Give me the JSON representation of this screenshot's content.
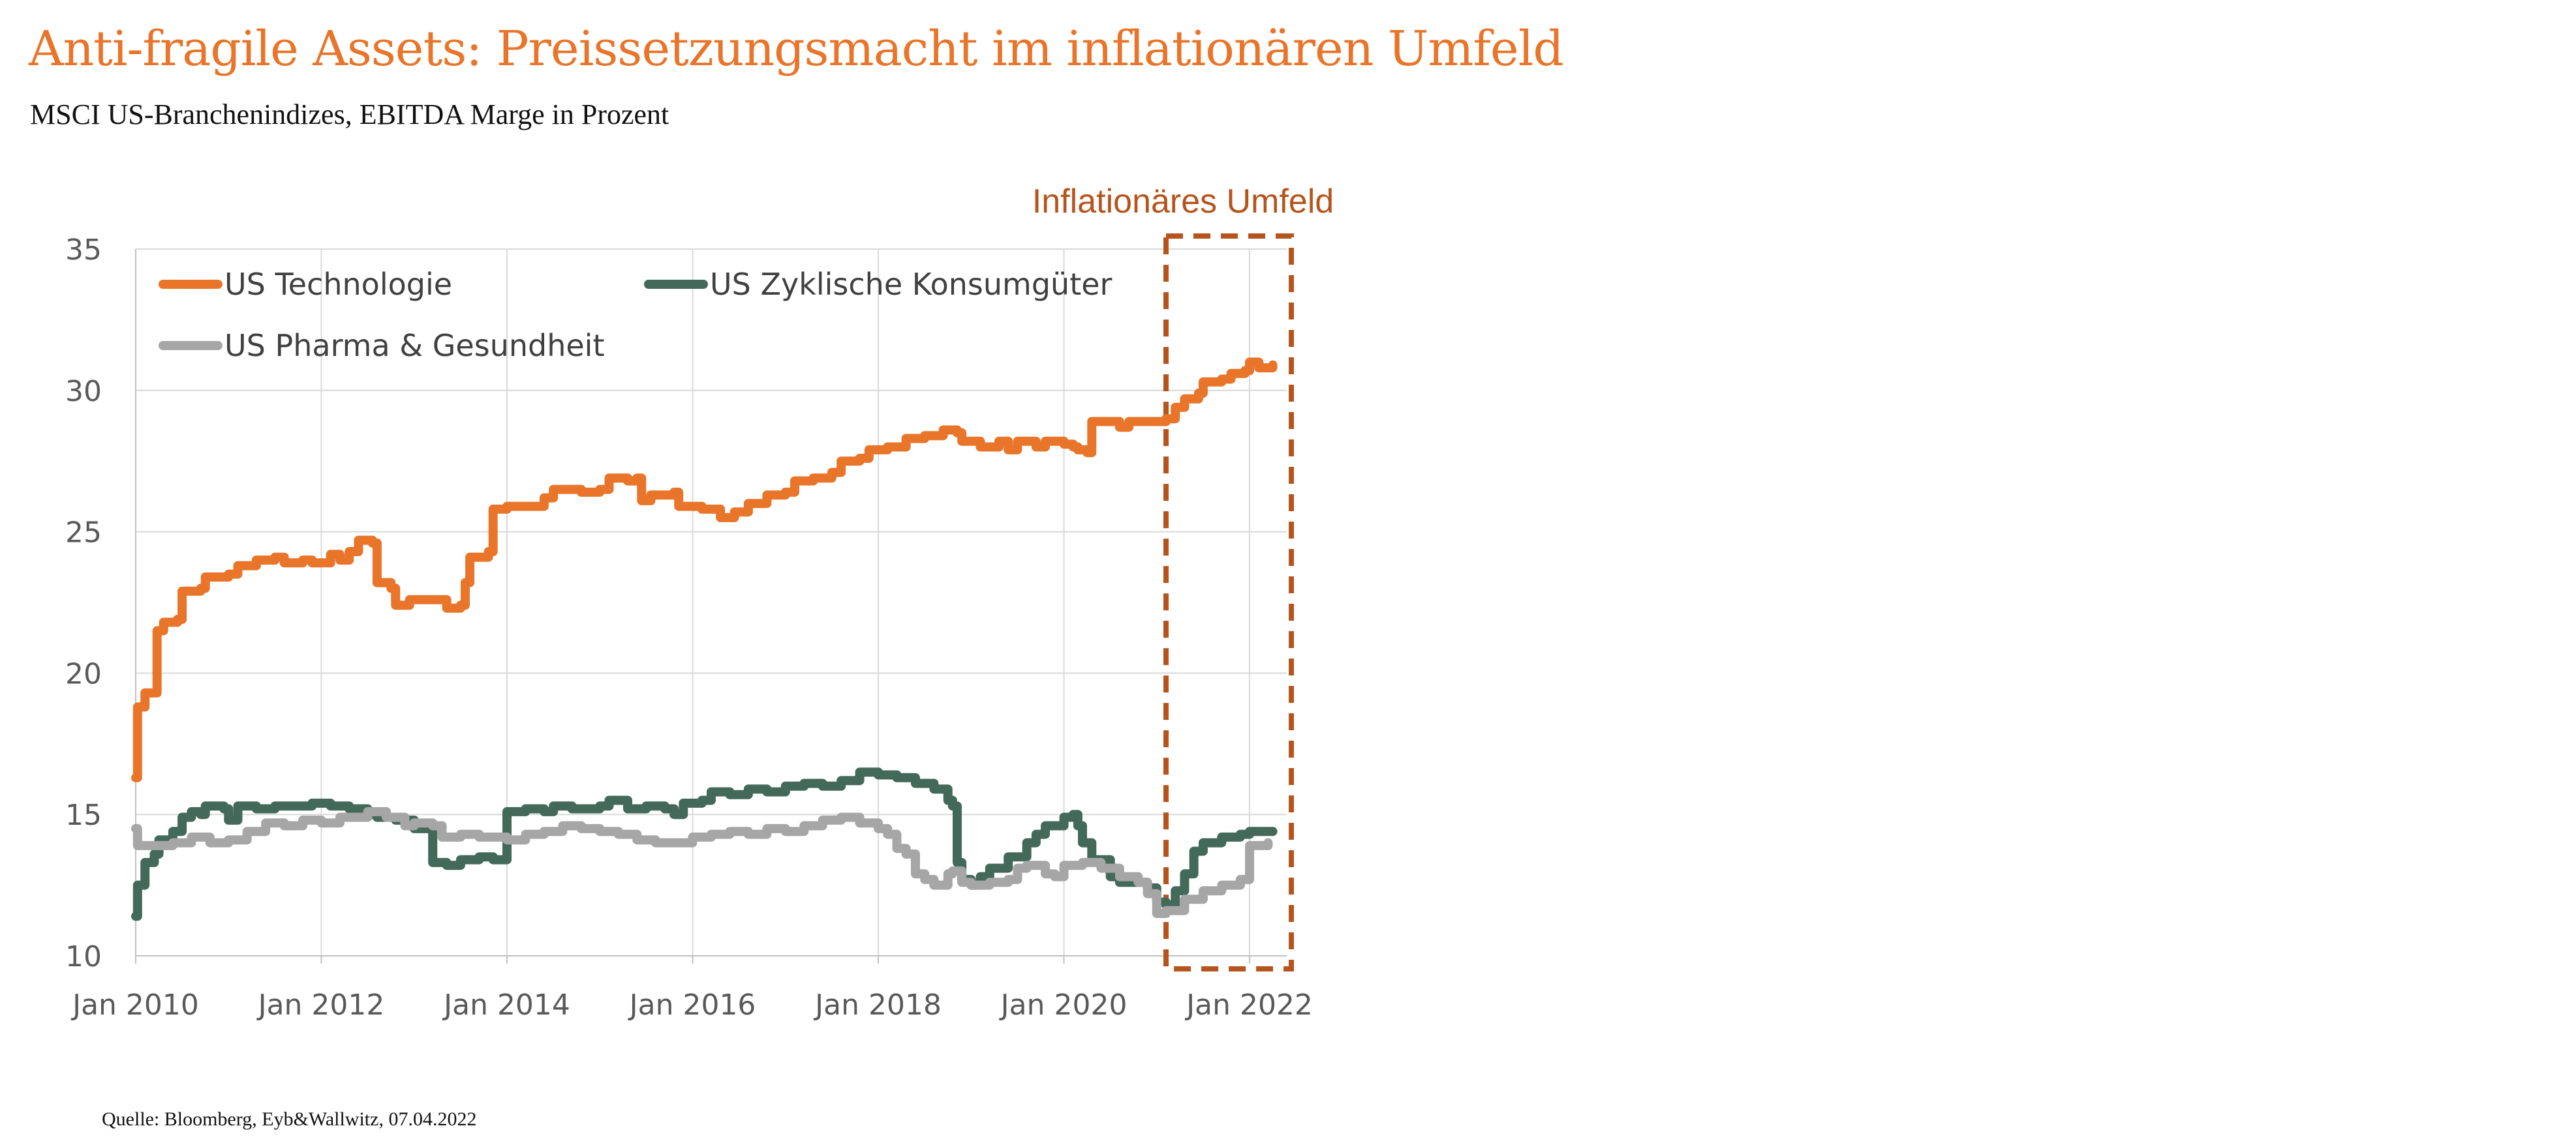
{
  "header": {
    "title": "Anti-fragile Assets: Preissetzungsmacht im inflationären Umfeld",
    "subtitle": "MSCI US-Branchenindizes, EBITDA Marge in Prozent"
  },
  "footer": {
    "source": "Quelle: Bloomberg, Eyb&Wallwitz, 07.04.2022"
  },
  "chart_data": {
    "type": "line",
    "title": "",
    "xlabel": "",
    "ylabel": "",
    "ylim": [
      10,
      35
    ],
    "yticks": [
      10,
      15,
      20,
      25,
      30,
      35
    ],
    "xlim": [
      2010.0,
      2022.4
    ],
    "xticks": [
      {
        "value": 2010,
        "label": "Jan 2010"
      },
      {
        "value": 2012,
        "label": "Jan 2012"
      },
      {
        "value": 2014,
        "label": "Jan 2014"
      },
      {
        "value": 2016,
        "label": "Jan 2016"
      },
      {
        "value": 2018,
        "label": "Jan 2018"
      },
      {
        "value": 2020,
        "label": "Jan 2020"
      },
      {
        "value": 2022,
        "label": "Jan 2022"
      }
    ],
    "grid": true,
    "legend_position": "top-left",
    "annotation": {
      "text": "Inflationäres Umfeld",
      "x_start": 2021.1,
      "x_end": 2022.45,
      "color": "#B5541C"
    },
    "series": [
      {
        "name": "US Technologie",
        "color": "#E8752A",
        "points": [
          [
            2010.0,
            16.3
          ],
          [
            2010.02,
            18.8
          ],
          [
            2010.1,
            19.3
          ],
          [
            2010.2,
            19.3
          ],
          [
            2010.23,
            21.5
          ],
          [
            2010.3,
            21.8
          ],
          [
            2010.45,
            21.9
          ],
          [
            2010.5,
            22.9
          ],
          [
            2010.7,
            23.0
          ],
          [
            2010.75,
            23.4
          ],
          [
            2011.0,
            23.5
          ],
          [
            2011.1,
            23.8
          ],
          [
            2011.3,
            24.0
          ],
          [
            2011.5,
            24.1
          ],
          [
            2011.6,
            23.9
          ],
          [
            2011.8,
            24.0
          ],
          [
            2011.9,
            23.9
          ],
          [
            2012.1,
            24.2
          ],
          [
            2012.2,
            24.0
          ],
          [
            2012.3,
            24.3
          ],
          [
            2012.4,
            24.7
          ],
          [
            2012.55,
            24.6
          ],
          [
            2012.6,
            23.2
          ],
          [
            2012.75,
            23.0
          ],
          [
            2012.8,
            22.4
          ],
          [
            2012.95,
            22.6
          ],
          [
            2013.2,
            22.6
          ],
          [
            2013.35,
            22.3
          ],
          [
            2013.5,
            22.4
          ],
          [
            2013.55,
            23.2
          ],
          [
            2013.6,
            24.1
          ],
          [
            2013.8,
            24.3
          ],
          [
            2013.85,
            25.8
          ],
          [
            2014.0,
            25.9
          ],
          [
            2014.2,
            25.9
          ],
          [
            2014.4,
            26.2
          ],
          [
            2014.5,
            26.5
          ],
          [
            2014.8,
            26.4
          ],
          [
            2015.0,
            26.5
          ],
          [
            2015.1,
            26.9
          ],
          [
            2015.3,
            26.8
          ],
          [
            2015.4,
            26.9
          ],
          [
            2015.45,
            26.1
          ],
          [
            2015.55,
            26.3
          ],
          [
            2015.8,
            26.4
          ],
          [
            2015.85,
            25.9
          ],
          [
            2016.1,
            25.8
          ],
          [
            2016.3,
            25.5
          ],
          [
            2016.45,
            25.7
          ],
          [
            2016.6,
            26.0
          ],
          [
            2016.8,
            26.3
          ],
          [
            2017.0,
            26.4
          ],
          [
            2017.1,
            26.8
          ],
          [
            2017.3,
            26.9
          ],
          [
            2017.5,
            27.1
          ],
          [
            2017.6,
            27.5
          ],
          [
            2017.8,
            27.6
          ],
          [
            2017.9,
            27.9
          ],
          [
            2018.1,
            28.0
          ],
          [
            2018.3,
            28.3
          ],
          [
            2018.5,
            28.4
          ],
          [
            2018.7,
            28.6
          ],
          [
            2018.85,
            28.5
          ],
          [
            2018.9,
            28.2
          ],
          [
            2019.1,
            28.0
          ],
          [
            2019.3,
            28.2
          ],
          [
            2019.4,
            27.9
          ],
          [
            2019.5,
            28.2
          ],
          [
            2019.7,
            28.0
          ],
          [
            2019.8,
            28.2
          ],
          [
            2020.0,
            28.1
          ],
          [
            2020.1,
            28.0
          ],
          [
            2020.15,
            27.9
          ],
          [
            2020.25,
            27.8
          ],
          [
            2020.3,
            28.9
          ],
          [
            2020.6,
            28.7
          ],
          [
            2020.7,
            28.9
          ],
          [
            2021.0,
            28.9
          ],
          [
            2021.1,
            29.0
          ],
          [
            2021.2,
            29.4
          ],
          [
            2021.3,
            29.7
          ],
          [
            2021.45,
            29.9
          ],
          [
            2021.5,
            30.3
          ],
          [
            2021.7,
            30.4
          ],
          [
            2021.8,
            30.6
          ],
          [
            2021.95,
            30.7
          ],
          [
            2022.0,
            31.0
          ],
          [
            2022.1,
            30.8
          ],
          [
            2022.25,
            30.9
          ]
        ]
      },
      {
        "name": "US Zyklische Konsumgüter",
        "color": "#43695A",
        "points": [
          [
            2010.0,
            11.4
          ],
          [
            2010.02,
            12.5
          ],
          [
            2010.1,
            13.3
          ],
          [
            2010.2,
            13.6
          ],
          [
            2010.25,
            14.1
          ],
          [
            2010.4,
            14.4
          ],
          [
            2010.5,
            14.9
          ],
          [
            2010.6,
            15.1
          ],
          [
            2010.7,
            15.0
          ],
          [
            2010.75,
            15.3
          ],
          [
            2010.95,
            15.2
          ],
          [
            2011.0,
            14.8
          ],
          [
            2011.1,
            15.3
          ],
          [
            2011.3,
            15.2
          ],
          [
            2011.5,
            15.3
          ],
          [
            2011.7,
            15.3
          ],
          [
            2011.9,
            15.4
          ],
          [
            2012.1,
            15.3
          ],
          [
            2012.3,
            15.2
          ],
          [
            2012.5,
            15.0
          ],
          [
            2012.6,
            14.9
          ],
          [
            2012.8,
            14.8
          ],
          [
            2013.0,
            14.5
          ],
          [
            2013.15,
            14.6
          ],
          [
            2013.2,
            13.3
          ],
          [
            2013.35,
            13.2
          ],
          [
            2013.5,
            13.4
          ],
          [
            2013.7,
            13.5
          ],
          [
            2013.85,
            13.4
          ],
          [
            2013.9,
            13.4
          ],
          [
            2014.0,
            15.1
          ],
          [
            2014.2,
            15.2
          ],
          [
            2014.4,
            15.1
          ],
          [
            2014.5,
            15.3
          ],
          [
            2014.7,
            15.2
          ],
          [
            2015.0,
            15.3
          ],
          [
            2015.1,
            15.5
          ],
          [
            2015.3,
            15.2
          ],
          [
            2015.5,
            15.3
          ],
          [
            2015.7,
            15.2
          ],
          [
            2015.8,
            15.0
          ],
          [
            2015.9,
            15.4
          ],
          [
            2016.1,
            15.5
          ],
          [
            2016.2,
            15.8
          ],
          [
            2016.4,
            15.7
          ],
          [
            2016.6,
            15.9
          ],
          [
            2016.8,
            15.8
          ],
          [
            2017.0,
            16.0
          ],
          [
            2017.2,
            16.1
          ],
          [
            2017.4,
            16.0
          ],
          [
            2017.6,
            16.2
          ],
          [
            2017.8,
            16.5
          ],
          [
            2018.0,
            16.4
          ],
          [
            2018.2,
            16.3
          ],
          [
            2018.4,
            16.1
          ],
          [
            2018.6,
            15.9
          ],
          [
            2018.75,
            15.5
          ],
          [
            2018.8,
            15.3
          ],
          [
            2018.85,
            13.3
          ],
          [
            2018.9,
            12.7
          ],
          [
            2019.0,
            12.5
          ],
          [
            2019.1,
            12.8
          ],
          [
            2019.2,
            13.1
          ],
          [
            2019.4,
            13.5
          ],
          [
            2019.6,
            14.0
          ],
          [
            2019.7,
            14.3
          ],
          [
            2019.8,
            14.6
          ],
          [
            2020.0,
            14.9
          ],
          [
            2020.1,
            15.0
          ],
          [
            2020.15,
            14.6
          ],
          [
            2020.2,
            14.0
          ],
          [
            2020.3,
            13.4
          ],
          [
            2020.5,
            12.8
          ],
          [
            2020.6,
            12.6
          ],
          [
            2020.8,
            12.6
          ],
          [
            2020.9,
            12.4
          ],
          [
            2021.0,
            11.9
          ],
          [
            2021.1,
            11.8
          ],
          [
            2021.2,
            12.3
          ],
          [
            2021.3,
            12.9
          ],
          [
            2021.4,
            13.7
          ],
          [
            2021.5,
            14.0
          ],
          [
            2021.7,
            14.2
          ],
          [
            2021.9,
            14.3
          ],
          [
            2022.0,
            14.4
          ],
          [
            2022.25,
            14.4
          ]
        ]
      },
      {
        "name": "US Pharma & Gesundheit",
        "color": "#A6A6A6",
        "points": [
          [
            2010.0,
            14.5
          ],
          [
            2010.02,
            13.9
          ],
          [
            2010.2,
            13.9
          ],
          [
            2010.4,
            14.0
          ],
          [
            2010.6,
            14.2
          ],
          [
            2010.8,
            14.0
          ],
          [
            2011.0,
            14.1
          ],
          [
            2011.2,
            14.4
          ],
          [
            2011.4,
            14.7
          ],
          [
            2011.6,
            14.6
          ],
          [
            2011.8,
            14.8
          ],
          [
            2012.0,
            14.7
          ],
          [
            2012.2,
            14.9
          ],
          [
            2012.4,
            14.9
          ],
          [
            2012.5,
            15.1
          ],
          [
            2012.7,
            14.9
          ],
          [
            2012.9,
            14.6
          ],
          [
            2013.0,
            14.7
          ],
          [
            2013.2,
            14.6
          ],
          [
            2013.3,
            14.2
          ],
          [
            2013.5,
            14.3
          ],
          [
            2013.7,
            14.2
          ],
          [
            2014.0,
            14.1
          ],
          [
            2014.2,
            14.3
          ],
          [
            2014.4,
            14.4
          ],
          [
            2014.6,
            14.6
          ],
          [
            2014.8,
            14.5
          ],
          [
            2015.0,
            14.4
          ],
          [
            2015.2,
            14.3
          ],
          [
            2015.4,
            14.1
          ],
          [
            2015.6,
            14.0
          ],
          [
            2015.8,
            14.0
          ],
          [
            2016.0,
            14.2
          ],
          [
            2016.2,
            14.3
          ],
          [
            2016.4,
            14.4
          ],
          [
            2016.6,
            14.3
          ],
          [
            2016.8,
            14.5
          ],
          [
            2017.0,
            14.4
          ],
          [
            2017.2,
            14.6
          ],
          [
            2017.4,
            14.8
          ],
          [
            2017.6,
            14.9
          ],
          [
            2017.8,
            14.7
          ],
          [
            2018.0,
            14.5
          ],
          [
            2018.1,
            14.3
          ],
          [
            2018.2,
            13.8
          ],
          [
            2018.3,
            13.6
          ],
          [
            2018.4,
            12.9
          ],
          [
            2018.5,
            12.7
          ],
          [
            2018.6,
            12.5
          ],
          [
            2018.75,
            12.9
          ],
          [
            2018.8,
            13.0
          ],
          [
            2018.9,
            12.6
          ],
          [
            2019.0,
            12.5
          ],
          [
            2019.2,
            12.6
          ],
          [
            2019.4,
            12.7
          ],
          [
            2019.5,
            13.1
          ],
          [
            2019.6,
            13.2
          ],
          [
            2019.8,
            12.9
          ],
          [
            2019.9,
            12.8
          ],
          [
            2020.0,
            13.2
          ],
          [
            2020.2,
            13.3
          ],
          [
            2020.4,
            13.1
          ],
          [
            2020.6,
            12.8
          ],
          [
            2020.8,
            12.6
          ],
          [
            2020.9,
            12.2
          ],
          [
            2021.0,
            11.5
          ],
          [
            2021.1,
            11.6
          ],
          [
            2021.3,
            12.0
          ],
          [
            2021.5,
            12.3
          ],
          [
            2021.7,
            12.5
          ],
          [
            2021.9,
            12.7
          ],
          [
            2022.0,
            13.9
          ],
          [
            2022.2,
            14.0
          ]
        ]
      }
    ]
  }
}
